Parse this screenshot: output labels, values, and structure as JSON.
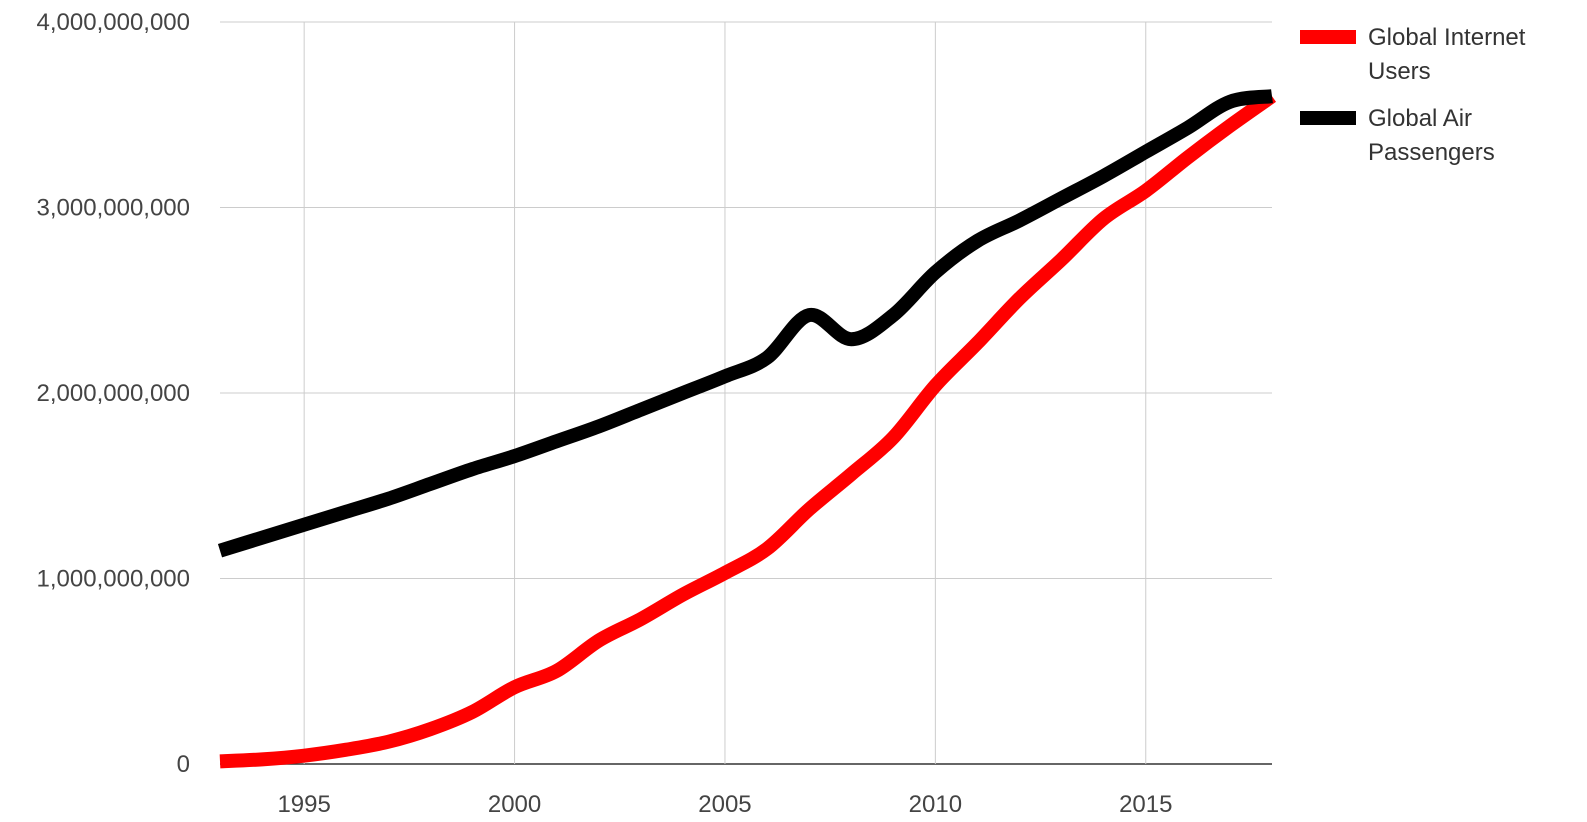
{
  "chart_data": {
    "type": "line",
    "title": "",
    "xlabel": "",
    "ylabel": "",
    "xlim": [
      1993,
      2018
    ],
    "ylim": [
      0,
      4000000000
    ],
    "x_ticks": [
      {
        "value": 1995,
        "label": "1995"
      },
      {
        "value": 2000,
        "label": "2000"
      },
      {
        "value": 2005,
        "label": "2005"
      },
      {
        "value": 2010,
        "label": "2010"
      },
      {
        "value": 2015,
        "label": "2015"
      }
    ],
    "y_ticks": [
      {
        "value": 0,
        "label": "0"
      },
      {
        "value": 1000000000,
        "label": "1,000,000,000"
      },
      {
        "value": 2000000000,
        "label": "2,000,000,000"
      },
      {
        "value": 3000000000,
        "label": "3,000,000,000"
      },
      {
        "value": 4000000000,
        "label": "4,000,000,000"
      }
    ],
    "grid": true,
    "legend_position": "top-right",
    "x": [
      1993,
      1994,
      1995,
      1996,
      1997,
      1998,
      1999,
      2000,
      2001,
      2002,
      2003,
      2004,
      2005,
      2006,
      2007,
      2008,
      2009,
      2010,
      2011,
      2012,
      2013,
      2014,
      2015,
      2016,
      2017,
      2018
    ],
    "series": [
      {
        "name": "Global Internet Users",
        "color": "#ff0000",
        "values": [
          14000000,
          25000000,
          45000000,
          77000000,
          120000000,
          188000000,
          281000000,
          414000000,
          502000000,
          665000000,
          781000000,
          913000000,
          1030000000,
          1160000000,
          1373000000,
          1562000000,
          1760000000,
          2040000000,
          2270000000,
          2510000000,
          2720000000,
          2940000000,
          3090000000,
          3270000000,
          3440000000,
          3600000000
        ]
      },
      {
        "name": "Global Air Passengers",
        "color": "#000000",
        "values": [
          1150000000,
          1220000000,
          1290000000,
          1360000000,
          1430000000,
          1510000000,
          1590000000,
          1660000000,
          1740000000,
          1820000000,
          1910000000,
          2000000000,
          2090000000,
          2190000000,
          2420000000,
          2290000000,
          2420000000,
          2650000000,
          2820000000,
          2930000000,
          3050000000,
          3170000000,
          3300000000,
          3430000000,
          3570000000,
          3600000000
        ]
      }
    ]
  }
}
